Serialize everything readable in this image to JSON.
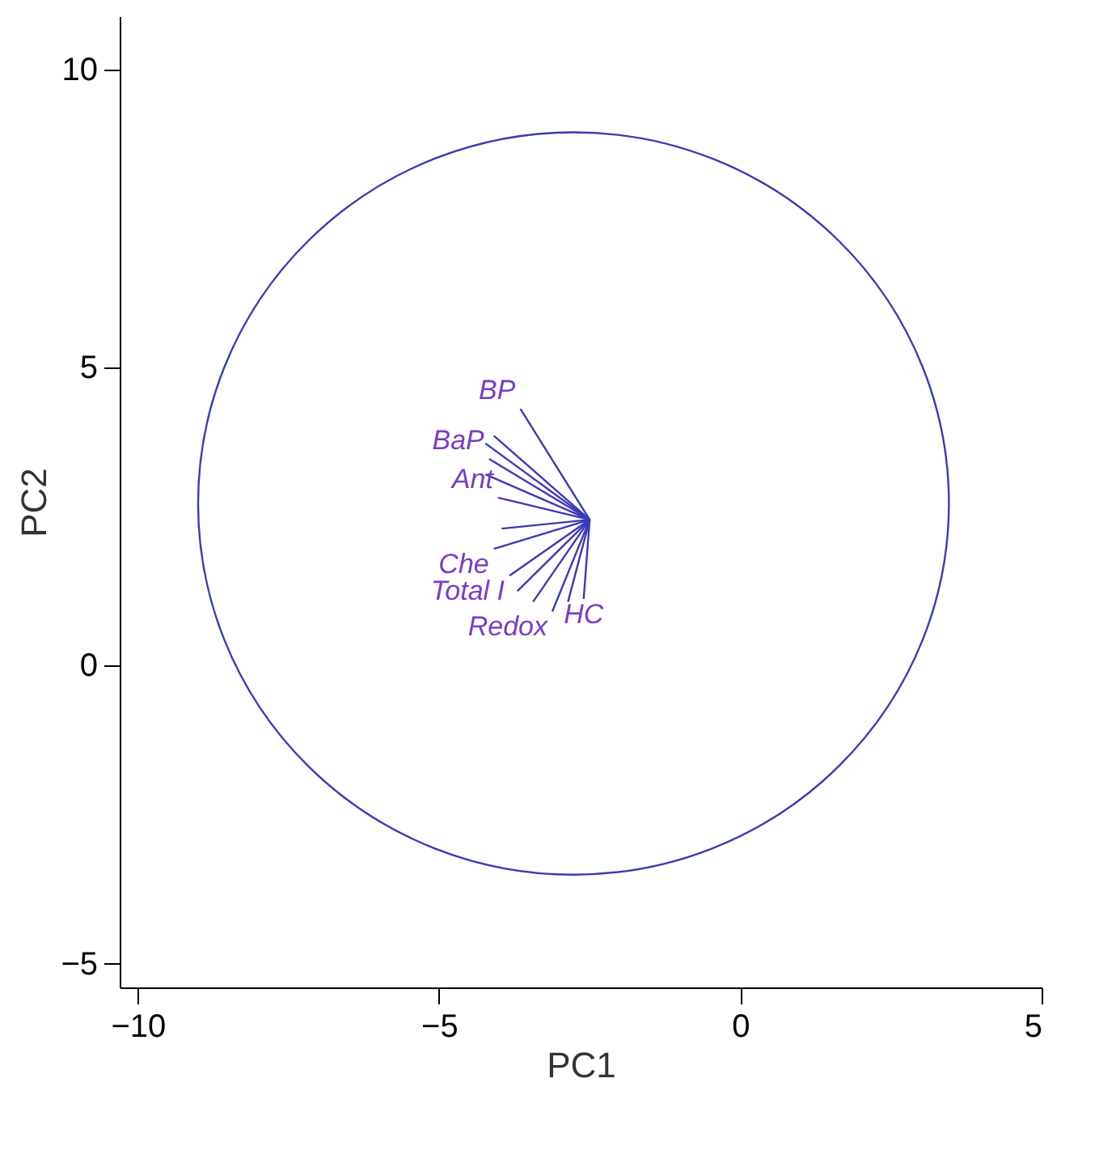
{
  "chart_data": {
    "type": "line",
    "xlabel": "PC1",
    "ylabel": "PC2",
    "xlim": [
      -10.3,
      5
    ],
    "ylim": [
      -5.4,
      10.9
    ],
    "xticks": [
      -10,
      -5,
      0,
      5
    ],
    "yticks": [
      -5,
      0,
      5,
      10
    ],
    "grid": false,
    "legend": false,
    "marker": "none",
    "line_style": "solid",
    "series": [
      {
        "name": "BP",
        "color": "#3a3ab8",
        "x": [
          -2.5,
          -3.65
        ],
        "values": [
          2.45,
          4.31
        ]
      },
      {
        "color": "#3a3ab8",
        "x": [
          -2.5,
          -4.09
        ],
        "values": [
          2.45,
          3.86
        ]
      },
      {
        "color": "#3a3ab8",
        "x": [
          -2.5,
          -4.23
        ],
        "values": [
          2.45,
          3.73
        ]
      },
      {
        "name": "BaP",
        "color": "#3a3ab8",
        "x": [
          -2.5,
          -4.17
        ],
        "values": [
          2.45,
          3.47
        ]
      },
      {
        "color": "#3a3ab8",
        "x": [
          -2.5,
          -4.23
        ],
        "values": [
          2.45,
          3.21
        ]
      },
      {
        "name": "Ant",
        "color": "#3a3ab8",
        "x": [
          -2.5,
          -4.02
        ],
        "values": [
          2.45,
          2.82
        ]
      },
      {
        "color": "#3a3ab8",
        "x": [
          -2.5,
          -3.96
        ],
        "values": [
          2.45,
          2.3
        ]
      },
      {
        "name": "Che",
        "color": "#3a3ab8",
        "x": [
          -2.5,
          -4.09
        ],
        "values": [
          2.45,
          1.96
        ]
      },
      {
        "name": "Total I",
        "color": "#3a3ab8",
        "x": [
          -2.5,
          -3.83
        ],
        "values": [
          2.45,
          1.51
        ]
      },
      {
        "color": "#3a3ab8",
        "x": [
          -2.5,
          -3.7
        ],
        "values": [
          2.45,
          1.25
        ]
      },
      {
        "color": "#3a3ab8",
        "x": [
          -2.5,
          -3.44
        ],
        "values": [
          2.45,
          1.07
        ]
      },
      {
        "name": "Redox",
        "color": "#3a3ab8",
        "x": [
          -2.5,
          -3.12
        ],
        "values": [
          2.45,
          0.91
        ]
      },
      {
        "color": "#3a3ab8",
        "x": [
          -2.5,
          -2.86
        ],
        "values": [
          2.45,
          1.07
        ]
      },
      {
        "name": "HC",
        "color": "#3a3ab8",
        "x": [
          -2.5,
          -2.6
        ],
        "values": [
          2.45,
          1.12
        ]
      }
    ]
  }
}
